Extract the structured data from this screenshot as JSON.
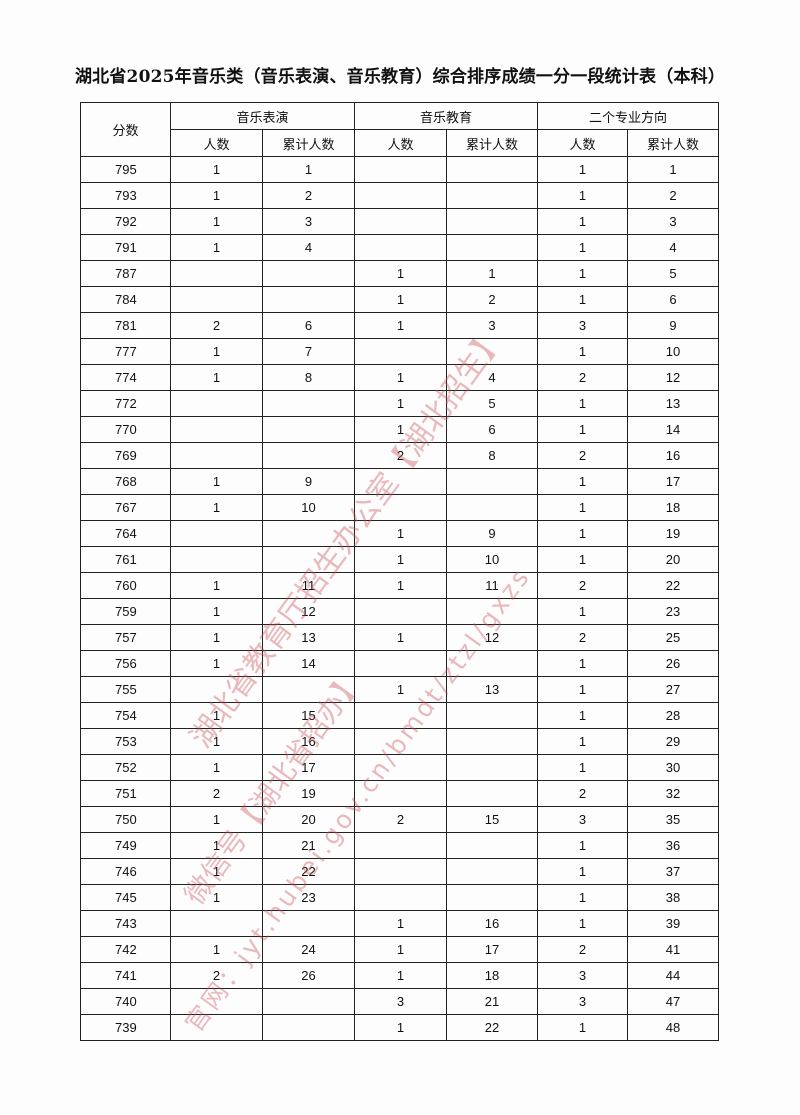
{
  "title": "湖北省2025年音乐类（音乐表演、音乐教育）综合排序成绩一分一段统计表（本科）",
  "headers": {
    "score": "分数",
    "groups": [
      "音乐表演",
      "音乐教育",
      "二个专业方向"
    ],
    "sub": [
      "人数",
      "累计人数",
      "人数",
      "累计人数",
      "人数",
      "累计人数"
    ]
  },
  "rows": [
    [
      "795",
      "1",
      "1",
      "",
      "",
      "1",
      "1"
    ],
    [
      "793",
      "1",
      "2",
      "",
      "",
      "1",
      "2"
    ],
    [
      "792",
      "1",
      "3",
      "",
      "",
      "1",
      "3"
    ],
    [
      "791",
      "1",
      "4",
      "",
      "",
      "1",
      "4"
    ],
    [
      "787",
      "",
      "",
      "1",
      "1",
      "1",
      "5"
    ],
    [
      "784",
      "",
      "",
      "1",
      "2",
      "1",
      "6"
    ],
    [
      "781",
      "2",
      "6",
      "1",
      "3",
      "3",
      "9"
    ],
    [
      "777",
      "1",
      "7",
      "",
      "",
      "1",
      "10"
    ],
    [
      "774",
      "1",
      "8",
      "1",
      "4",
      "2",
      "12"
    ],
    [
      "772",
      "",
      "",
      "1",
      "5",
      "1",
      "13"
    ],
    [
      "770",
      "",
      "",
      "1",
      "6",
      "1",
      "14"
    ],
    [
      "769",
      "",
      "",
      "2",
      "8",
      "2",
      "16"
    ],
    [
      "768",
      "1",
      "9",
      "",
      "",
      "1",
      "17"
    ],
    [
      "767",
      "1",
      "10",
      "",
      "",
      "1",
      "18"
    ],
    [
      "764",
      "",
      "",
      "1",
      "9",
      "1",
      "19"
    ],
    [
      "761",
      "",
      "",
      "1",
      "10",
      "1",
      "20"
    ],
    [
      "760",
      "1",
      "11",
      "1",
      "11",
      "2",
      "22"
    ],
    [
      "759",
      "1",
      "12",
      "",
      "",
      "1",
      "23"
    ],
    [
      "757",
      "1",
      "13",
      "1",
      "12",
      "2",
      "25"
    ],
    [
      "756",
      "1",
      "14",
      "",
      "",
      "1",
      "26"
    ],
    [
      "755",
      "",
      "",
      "1",
      "13",
      "1",
      "27"
    ],
    [
      "754",
      "1",
      "15",
      "",
      "",
      "1",
      "28"
    ],
    [
      "753",
      "1",
      "16",
      "",
      "",
      "1",
      "29"
    ],
    [
      "752",
      "1",
      "17",
      "",
      "",
      "1",
      "30"
    ],
    [
      "751",
      "2",
      "19",
      "",
      "",
      "2",
      "32"
    ],
    [
      "750",
      "1",
      "20",
      "2",
      "15",
      "3",
      "35"
    ],
    [
      "749",
      "1",
      "21",
      "",
      "",
      "1",
      "36"
    ],
    [
      "746",
      "1",
      "22",
      "",
      "",
      "1",
      "37"
    ],
    [
      "745",
      "1",
      "23",
      "",
      "",
      "1",
      "38"
    ],
    [
      "743",
      "",
      "",
      "1",
      "16",
      "1",
      "39"
    ],
    [
      "742",
      "1",
      "24",
      "1",
      "17",
      "2",
      "41"
    ],
    [
      "741",
      "2",
      "26",
      "1",
      "18",
      "3",
      "44"
    ],
    [
      "740",
      "",
      "",
      "3",
      "21",
      "3",
      "47"
    ],
    [
      "739",
      "",
      "",
      "1",
      "22",
      "1",
      "48"
    ]
  ],
  "watermark": {
    "line1": "湖北省教育厅招生办公室【湖北招生】",
    "line2": "微信号【湖北省招办】",
    "line3": "官网：jyt.hubei.gov.cn/bmdt/ztzl/gxzs",
    "color": "#c84650"
  }
}
